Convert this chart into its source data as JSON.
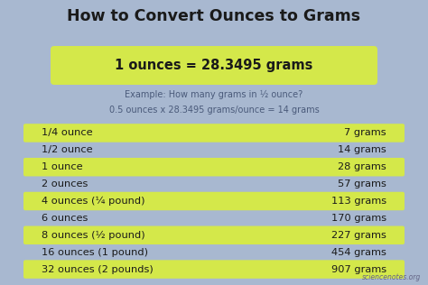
{
  "title": "How to Convert Ounces to Grams",
  "bg_color": "#a8b8d0",
  "highlight_color": "#d4e84a",
  "text_color_dark": "#1a1a1a",
  "example_text_color": "#4a5a7a",
  "formula_text": "1 ounces = 28.3495 grams",
  "example_line1": "Example: How many grams in ½ ounce?",
  "example_line2": "0.5 ounces x 28.3495 grams/ounce = 14 grams",
  "watermark": "sciencenotes.org",
  "rows": [
    {
      "label": "1/4 ounce",
      "value": "7 grams",
      "highlight": true
    },
    {
      "label": "1/2 ounce",
      "value": "14 grams",
      "highlight": false
    },
    {
      "label": "1 ounce",
      "value": "28 grams",
      "highlight": true
    },
    {
      "label": "2 ounces",
      "value": "57 grams",
      "highlight": false
    },
    {
      "label": "4 ounces (¼ pound)",
      "value": "113 grams",
      "highlight": true
    },
    {
      "label": "6 ounces",
      "value": "170 grams",
      "highlight": false
    },
    {
      "label": "8 ounces (½ pound)",
      "value": "227 grams",
      "highlight": true
    },
    {
      "label": "16 ounces (1 pound)",
      "value": "454 grams",
      "highlight": false
    },
    {
      "label": "32 ounces (2 pounds)",
      "value": "907 grams",
      "highlight": true
    }
  ]
}
